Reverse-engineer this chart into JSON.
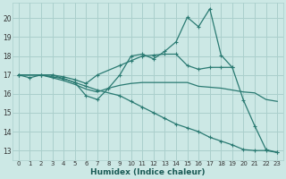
{
  "xlabel": "Humidex (Indice chaleur)",
  "background_color": "#cce8e5",
  "grid_color": "#aacfcc",
  "line_color": "#2a7a72",
  "xticks": [
    0,
    1,
    2,
    3,
    4,
    5,
    6,
    7,
    8,
    9,
    10,
    11,
    12,
    13,
    14,
    15,
    16,
    17,
    18,
    19,
    20,
    21,
    22,
    23
  ],
  "yticks": [
    13,
    14,
    15,
    16,
    17,
    18,
    19,
    20
  ],
  "xlim": [
    -0.5,
    23.5
  ],
  "ylim": [
    12.5,
    20.8
  ],
  "lines": [
    {
      "x": [
        0,
        1,
        2,
        3,
        4,
        5,
        6,
        7,
        8,
        9,
        10,
        11,
        12,
        13,
        14,
        15,
        16,
        17,
        18,
        19,
        20,
        21,
        22,
        23
      ],
      "y": [
        17,
        16.85,
        17,
        17,
        16.8,
        16.6,
        15.9,
        15.7,
        16.3,
        17.0,
        18.0,
        18.1,
        17.85,
        18.25,
        18.75,
        20.05,
        19.55,
        20.5,
        18.05,
        17.4,
        15.65,
        14.3,
        13.05,
        12.9
      ],
      "has_markers": true
    },
    {
      "x": [
        0,
        2,
        3,
        4,
        5,
        6,
        7,
        9,
        10,
        11,
        12,
        13,
        14,
        15,
        16,
        17,
        18,
        19
      ],
      "y": [
        17,
        17,
        17,
        16.9,
        16.75,
        16.55,
        17.0,
        17.5,
        17.75,
        18.0,
        18.05,
        18.1,
        18.1,
        17.5,
        17.3,
        17.4,
        17.4,
        17.4
      ],
      "has_markers": true
    },
    {
      "x": [
        0,
        2,
        3,
        4,
        5,
        6,
        7,
        8,
        9,
        10,
        11,
        12,
        13,
        14,
        15,
        16,
        17,
        18,
        19,
        20,
        21,
        22,
        23
      ],
      "y": [
        17,
        17,
        16.85,
        16.7,
        16.5,
        16.25,
        16.1,
        16.3,
        16.45,
        16.55,
        16.6,
        16.6,
        16.6,
        16.6,
        16.6,
        16.4,
        16.35,
        16.3,
        16.2,
        16.1,
        16.05,
        15.7,
        15.6
      ],
      "has_markers": false
    },
    {
      "x": [
        0,
        2,
        3,
        4,
        5,
        6,
        7,
        9,
        10,
        11,
        12,
        13,
        14,
        15,
        16,
        17,
        18,
        19,
        20,
        21,
        22,
        23
      ],
      "y": [
        17,
        17,
        16.9,
        16.8,
        16.6,
        16.4,
        16.2,
        15.9,
        15.6,
        15.3,
        15.0,
        14.7,
        14.4,
        14.2,
        14.0,
        13.7,
        13.5,
        13.3,
        13.05,
        13.0,
        13.0,
        12.9
      ],
      "has_markers": true
    }
  ]
}
